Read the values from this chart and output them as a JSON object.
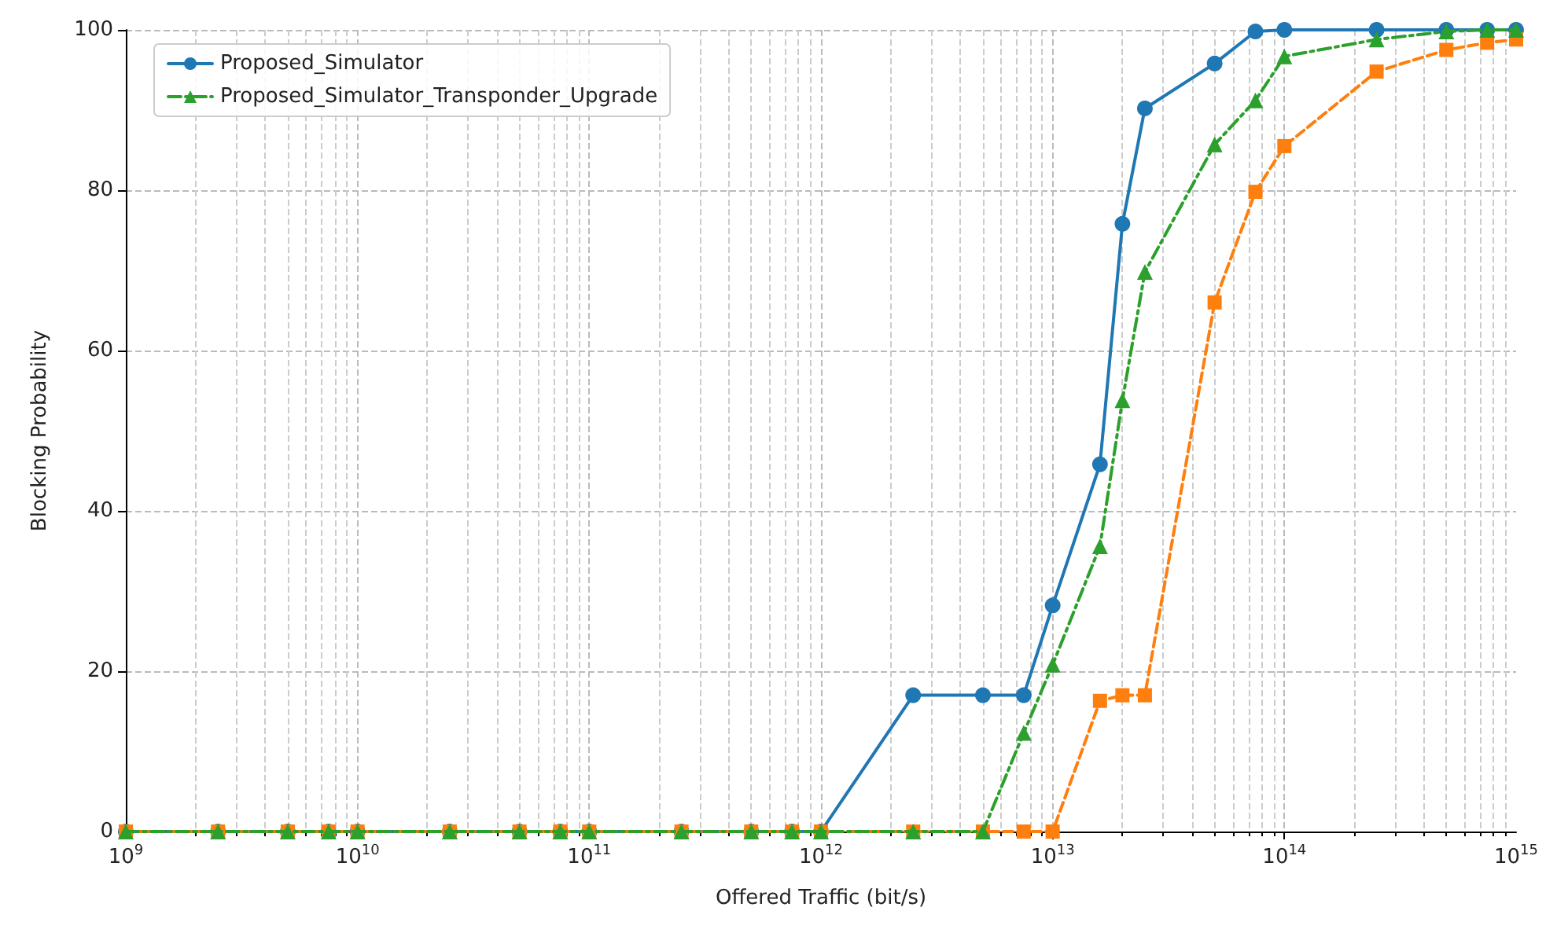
{
  "chart_data": {
    "type": "line",
    "xlabel": "Offered Traffic (bit/s)",
    "ylabel": "Blocking Probability",
    "x": [
      1000000000.0,
      2500000000.0,
      5000000000.0,
      7500000000.0,
      10000000000.0,
      25000000000.0,
      50000000000.0,
      75000000000.0,
      100000000000.0,
      250000000000.0,
      500000000000.0,
      750000000000.0,
      1000000000000.0,
      2500000000000.0,
      5000000000000.0,
      7500000000000.0,
      10000000000000.0,
      16000000000000.0,
      20000000000000.0,
      25000000000000.0,
      50000000000000.0,
      75000000000000.0,
      100000000000000.0,
      250000000000000.0,
      500000000000000.0,
      750000000000000.0,
      1000000000000000.0
    ],
    "series": [
      {
        "name": "Proposed_Simulator",
        "color": "#1f77b4",
        "marker": "circle",
        "line_style": "solid",
        "values": [
          0,
          0,
          0,
          0,
          0,
          0,
          0,
          0,
          0,
          0,
          0,
          0,
          0,
          17,
          17,
          17,
          28.2,
          45.8,
          75.8,
          90.2,
          95.8,
          99.8,
          100,
          100,
          100,
          100,
          100
        ]
      },
      {
        "color": "#ff7f0e",
        "marker": "square",
        "line_style": "dashed",
        "values": [
          0,
          0,
          0,
          0,
          0,
          0,
          0,
          0,
          0,
          0,
          0,
          0,
          0,
          0,
          0,
          0,
          0,
          16.3,
          17,
          17,
          66,
          79.8,
          85.5,
          94.8,
          97.5,
          98.4,
          98.8
        ]
      },
      {
        "name": "Proposed_Simulator_Transponder_Upgrade",
        "color": "#2ca02c",
        "marker": "triangle",
        "line_style": "dashdot",
        "values": [
          0,
          0,
          0,
          0,
          0,
          0,
          0,
          0,
          0,
          0,
          0,
          0,
          0,
          0,
          0,
          12.3,
          20.8,
          35.6,
          53.8,
          69.8,
          85.7,
          91.2,
          96.7,
          98.8,
          99.8,
          100,
          100
        ]
      }
    ],
    "log": "x",
    "xlim": [
      1000000000.0,
      1000000000000000.0
    ],
    "xticks": [
      {
        "value": 1000000000.0,
        "label": "10$^{9}$"
      },
      {
        "value": 10000000000.0,
        "label": "10$^{10}$"
      },
      {
        "value": 100000000000.0,
        "label": "10$^{11}$"
      },
      {
        "value": 1000000000000.0,
        "label": "10$^{12}$"
      },
      {
        "value": 10000000000000.0,
        "label": "10$^{13}$"
      },
      {
        "value": 100000000000000.0,
        "label": "10$^{14}$"
      },
      {
        "value": 1000000000000000.0,
        "label": "10$^{15}$"
      }
    ],
    "ylim": [
      0,
      100
    ],
    "yticks": [
      0,
      20,
      40,
      60,
      80,
      100
    ],
    "grid": true,
    "legend": "top left"
  }
}
